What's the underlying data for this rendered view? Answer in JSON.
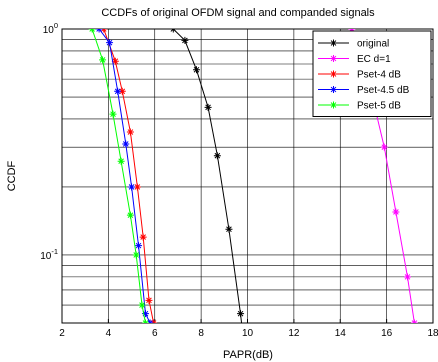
{
  "chart_data": {
    "type": "line",
    "title": "CCDFs of original OFDM signal and companded signals",
    "xlabel": "PAPR(dB)",
    "ylabel": "CCDF",
    "xlim": [
      2,
      18
    ],
    "ylim": [
      0.05,
      1
    ],
    "yscale": "log",
    "grid": true,
    "legend_position": "top-right",
    "x_ticks": [
      2,
      4,
      6,
      8,
      10,
      12,
      14,
      16,
      18
    ],
    "y_ticks": [
      {
        "value": 1,
        "base": "10",
        "exp": "0"
      },
      {
        "value": 0.1,
        "base": "10",
        "exp": "-1"
      }
    ],
    "series": [
      {
        "name": "original",
        "color": "#000000",
        "marker": "star",
        "points": [
          [
            6.8,
            1.0
          ],
          [
            7.3,
            0.89
          ],
          [
            7.8,
            0.66
          ],
          [
            8.3,
            0.45
          ],
          [
            8.7,
            0.275
          ],
          [
            9.2,
            0.13
          ],
          [
            9.7,
            0.055
          ],
          [
            9.85,
            0.04
          ]
        ]
      },
      {
        "name": "EC  d=1",
        "color": "#ff00ff",
        "marker": "star",
        "points": [
          [
            14.5,
            1.0
          ],
          [
            15.2,
            0.6
          ],
          [
            15.9,
            0.3
          ],
          [
            16.4,
            0.155
          ],
          [
            16.9,
            0.08
          ],
          [
            17.2,
            0.05
          ]
        ]
      },
      {
        "name": "Pset-4 dB",
        "color": "#ff0000",
        "marker": "star",
        "points": [
          [
            3.8,
            1.0
          ],
          [
            4.3,
            0.72
          ],
          [
            4.6,
            0.53
          ],
          [
            4.95,
            0.35
          ],
          [
            5.25,
            0.2
          ],
          [
            5.5,
            0.12
          ],
          [
            5.75,
            0.063
          ],
          [
            5.95,
            0.05
          ]
        ]
      },
      {
        "name": "Pset-4.5 dB",
        "color": "#0000ff",
        "marker": "star",
        "points": [
          [
            3.6,
            1.0
          ],
          [
            4.05,
            0.87
          ],
          [
            4.4,
            0.53
          ],
          [
            4.75,
            0.31
          ],
          [
            5.0,
            0.2
          ],
          [
            5.3,
            0.11
          ],
          [
            5.6,
            0.055
          ],
          [
            5.8,
            0.05
          ]
        ]
      },
      {
        "name": "Pset-5 dB",
        "color": "#00ff00",
        "marker": "star",
        "points": [
          [
            3.3,
            1.0
          ],
          [
            3.75,
            0.73
          ],
          [
            4.2,
            0.42
          ],
          [
            4.55,
            0.26
          ],
          [
            4.95,
            0.15
          ],
          [
            5.2,
            0.1
          ],
          [
            5.45,
            0.06
          ],
          [
            5.6,
            0.05
          ]
        ]
      }
    ]
  }
}
